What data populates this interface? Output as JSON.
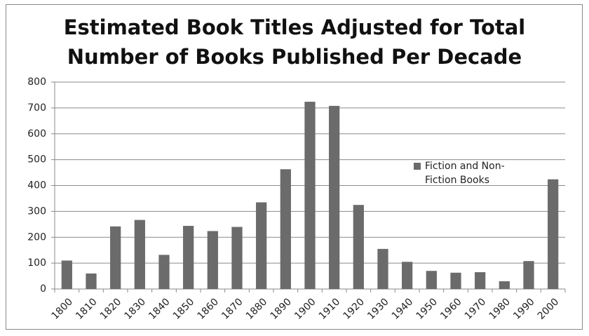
{
  "chart_data": {
    "type": "bar",
    "title": "Estimated Book Titles Adjusted for Total Number of Books Published Per Decade",
    "categories": [
      "1800",
      "1810",
      "1820",
      "1830",
      "1840",
      "1850",
      "1860",
      "1870",
      "1880",
      "1890",
      "1900",
      "1910",
      "1920",
      "1930",
      "1940",
      "1950",
      "1960",
      "1970",
      "1980",
      "1990",
      "2000"
    ],
    "series": [
      {
        "name": "Fiction and Non-Fiction Books",
        "color": "#6b6b6b",
        "values": [
          110,
          60,
          242,
          267,
          132,
          244,
          224,
          240,
          335,
          463,
          724,
          708,
          325,
          155,
          105,
          70,
          63,
          65,
          30,
          108,
          424
        ]
      }
    ],
    "ylim": [
      0,
      800
    ],
    "yticks": [
      0,
      100,
      200,
      300,
      400,
      500,
      600,
      700,
      800
    ],
    "grid": true,
    "legend": "right"
  }
}
